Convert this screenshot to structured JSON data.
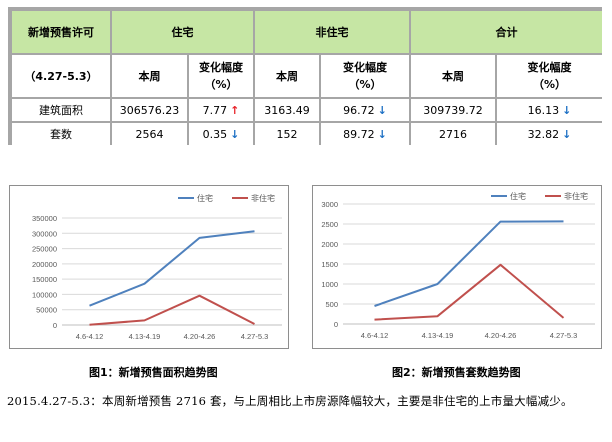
{
  "table": {
    "title": "新增预售许可",
    "period": "（4.27-5.3）",
    "groups": [
      "住宅",
      "非住宅",
      "合计"
    ],
    "sub_week": "本周",
    "sub_change": "变化幅度（%）",
    "sub_change_line1": "变化幅度",
    "sub_change_line2": "（%）",
    "rows": [
      {
        "label": "建筑面积",
        "res_week": "306576.23",
        "res_chg": "7.77",
        "res_dir": "up",
        "non_week": "3163.49",
        "non_chg": "96.72",
        "non_dir": "down",
        "tot_week": "309739.72",
        "tot_chg": "16.13",
        "tot_dir": "down"
      },
      {
        "label": "套数",
        "res_week": "2564",
        "res_chg": "0.35",
        "res_dir": "down",
        "non_week": "152",
        "non_chg": "89.72",
        "non_dir": "down",
        "tot_week": "2716",
        "tot_chg": "32.82",
        "tot_dir": "down"
      }
    ]
  },
  "colors": {
    "residential": "#4f81bd",
    "non_residential": "#c0504d",
    "header_bg": "#c6e6a4",
    "arrow_up": "#e8242a",
    "arrow_down": "#1c6fc4"
  },
  "chart_data": [
    {
      "type": "line",
      "title": "",
      "categories": [
        "4.6-4.12",
        "4.13-4.19",
        "4.20-4.26",
        "4.27-5.3"
      ],
      "series": [
        {
          "name": "住宅",
          "values": [
            63000,
            135000,
            285000,
            306576
          ]
        },
        {
          "name": "非住宅",
          "values": [
            1000,
            15000,
            96000,
            3163
          ]
        }
      ],
      "ylim": [
        0,
        350000
      ],
      "yticks": [
        "0",
        "50000",
        "100000",
        "150000",
        "200000",
        "250000",
        "300000",
        "350000"
      ],
      "legend": "top",
      "grid": true,
      "caption": "图1：新增预售面积趋势图"
    },
    {
      "type": "line",
      "title": "",
      "categories": [
        "4.6-4.12",
        "4.13-4.19",
        "4.20-4.26",
        "4.27-5.3"
      ],
      "series": [
        {
          "name": "住宅",
          "values": [
            450,
            1000,
            2560,
            2564
          ]
        },
        {
          "name": "非住宅",
          "values": [
            110,
            195,
            1480,
            152
          ]
        }
      ],
      "ylim": [
        0,
        3000
      ],
      "yticks": [
        "0",
        "500",
        "1000",
        "1500",
        "2000",
        "2500",
        "3000"
      ],
      "legend": "top",
      "grid": true,
      "caption": "图2：新增预售套数趋势图"
    }
  ],
  "summary": "2015.4.27-5.3：本周新增预售 2716 套，与上周相比上市房源降幅较大，主要是非住宅的上市量大幅减少。"
}
